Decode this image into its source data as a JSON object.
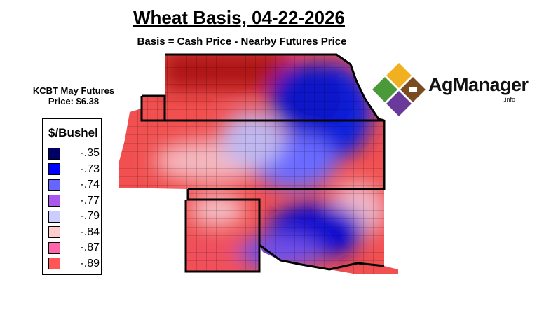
{
  "title": "Wheat Basis, 04-22-2026",
  "subtitle": "Basis = Cash Price - Nearby Futures Price",
  "futures_label": "KCBT May Futures Price: $6.38",
  "legend": {
    "title": "$/Bushel",
    "items": [
      {
        "value": "-.35",
        "color": "#000066"
      },
      {
        "value": "-.73",
        "color": "#0000ff"
      },
      {
        "value": "-.74",
        "color": "#6666ff"
      },
      {
        "value": "-.77",
        "color": "#aa55ee"
      },
      {
        "value": "-.79",
        "color": "#ccccff"
      },
      {
        "value": "-.84",
        "color": "#ffcccc"
      },
      {
        "value": "-.87",
        "color": "#ff66aa"
      },
      {
        "value": "-.89",
        "color": "#ff5555"
      }
    ]
  },
  "logo": {
    "name": "AgManager",
    "suffix": ".info"
  }
}
